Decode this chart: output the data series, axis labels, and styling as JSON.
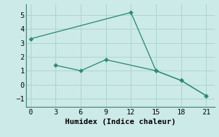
{
  "series1_x": [
    0,
    12,
    15,
    18,
    21
  ],
  "series1_y": [
    3.3,
    5.2,
    1.0,
    0.3,
    -0.8
  ],
  "series2_x": [
    3,
    6,
    9,
    15,
    18,
    21
  ],
  "series2_y": [
    1.4,
    1.0,
    1.8,
    1.0,
    0.3,
    -0.8
  ],
  "line_color": "#2e8b7a",
  "marker": "D",
  "marker_size": 3,
  "bg_color": "#cceae7",
  "grid_color": "#aad4d0",
  "xlabel": "Humidex (Indice chaleur)",
  "xlim": [
    -0.5,
    22
  ],
  "ylim": [
    -1.6,
    5.8
  ],
  "xticks": [
    0,
    3,
    6,
    9,
    12,
    15,
    18,
    21
  ],
  "yticks": [
    -1,
    0,
    1,
    2,
    3,
    4,
    5
  ],
  "xlabel_fontsize": 8,
  "tick_fontsize": 7.5,
  "linewidth": 1.0
}
